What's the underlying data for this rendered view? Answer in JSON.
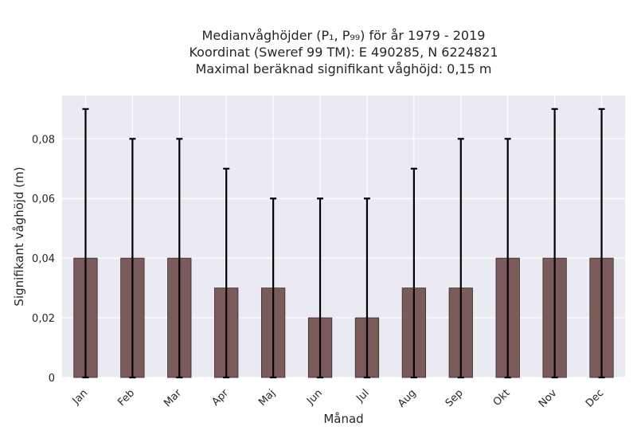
{
  "title": {
    "line1": "Medianvåghöjder (P₁, P₉₉) för år 1979 - 2019",
    "line2": "Koordinat (Sweref 99 TM): E 490285, N 6224821",
    "line3": "Maximal beräknad signifikant våghöjd: 0,15 m"
  },
  "chart_data": {
    "type": "bar",
    "categories": [
      "Jan",
      "Feb",
      "Mar",
      "Apr",
      "Maj",
      "Jun",
      "Jul",
      "Aug",
      "Sep",
      "Okt",
      "Nov",
      "Dec"
    ],
    "values": [
      0.04,
      0.04,
      0.04,
      0.03,
      0.03,
      0.02,
      0.02,
      0.03,
      0.03,
      0.04,
      0.04,
      0.04
    ],
    "error_low": [
      0,
      0,
      0,
      0,
      0,
      0,
      0,
      0,
      0,
      0,
      0,
      0
    ],
    "error_high": [
      0.09,
      0.08,
      0.08,
      0.07,
      0.06,
      0.06,
      0.06,
      0.07,
      0.08,
      0.08,
      0.09,
      0.09
    ],
    "xlabel": "Månad",
    "ylabel": "Signifikant våghöjd (m)",
    "ylim": [
      0,
      0.0945
    ],
    "yticks": [
      0,
      0.02,
      0.04,
      0.06,
      0.08
    ],
    "ytick_labels": [
      "0",
      "0,02",
      "0,04",
      "0,06",
      "0,08"
    ],
    "grid": true,
    "colors": {
      "bar": "#7b5a5a",
      "bar_edge": "#3a2a2a",
      "error": "#000000",
      "plot_bg": "#eaeaf2",
      "grid": "#ffffff"
    }
  }
}
